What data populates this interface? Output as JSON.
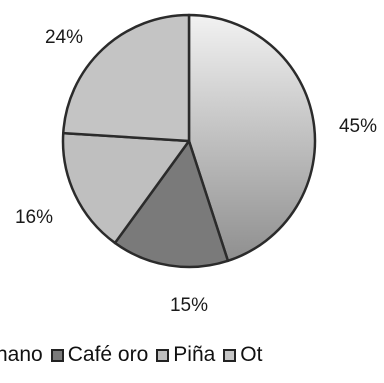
{
  "chart_data": {
    "type": "pie",
    "title": "",
    "slices": [
      {
        "label": "Ecuatoriano",
        "visible_label": "hano",
        "value": 45,
        "label_text": "45%",
        "color": "#bdbdbd"
      },
      {
        "label": "Café oro",
        "value": 15,
        "label_text": "15%",
        "color": "#7a7a7a"
      },
      {
        "label": "Piña",
        "value": 16,
        "label_text": "16%",
        "color": "#bfbfbf"
      },
      {
        "label": "Ot",
        "value": 24,
        "label_text": "24%",
        "color": "#c4c4c4"
      }
    ],
    "start_angle_deg": 0,
    "direction": "clockwise",
    "legend": {
      "placement": "bottom",
      "items": [
        "hano",
        "Café oro",
        "Piña",
        "Ot"
      ]
    },
    "colors": {
      "outline": "#2b2b2b"
    }
  }
}
